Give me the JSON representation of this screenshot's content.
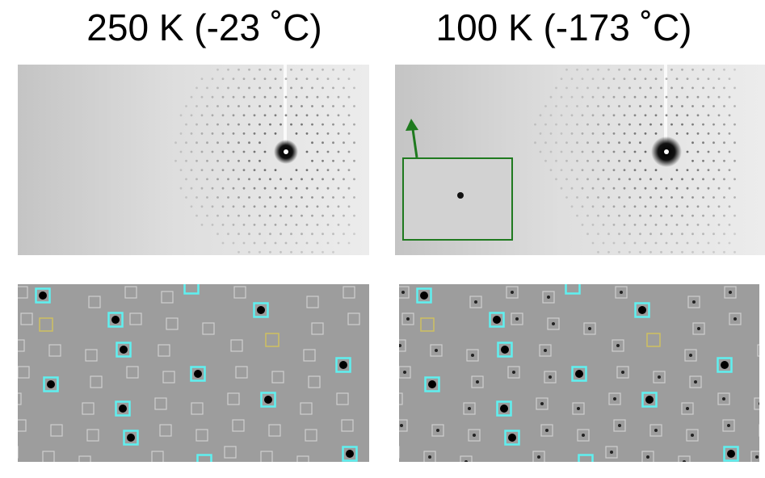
{
  "panels": [
    {
      "title": "250 K (-23 ˚C)"
    },
    {
      "title": "100 K (-173 ˚C)"
    }
  ]
}
